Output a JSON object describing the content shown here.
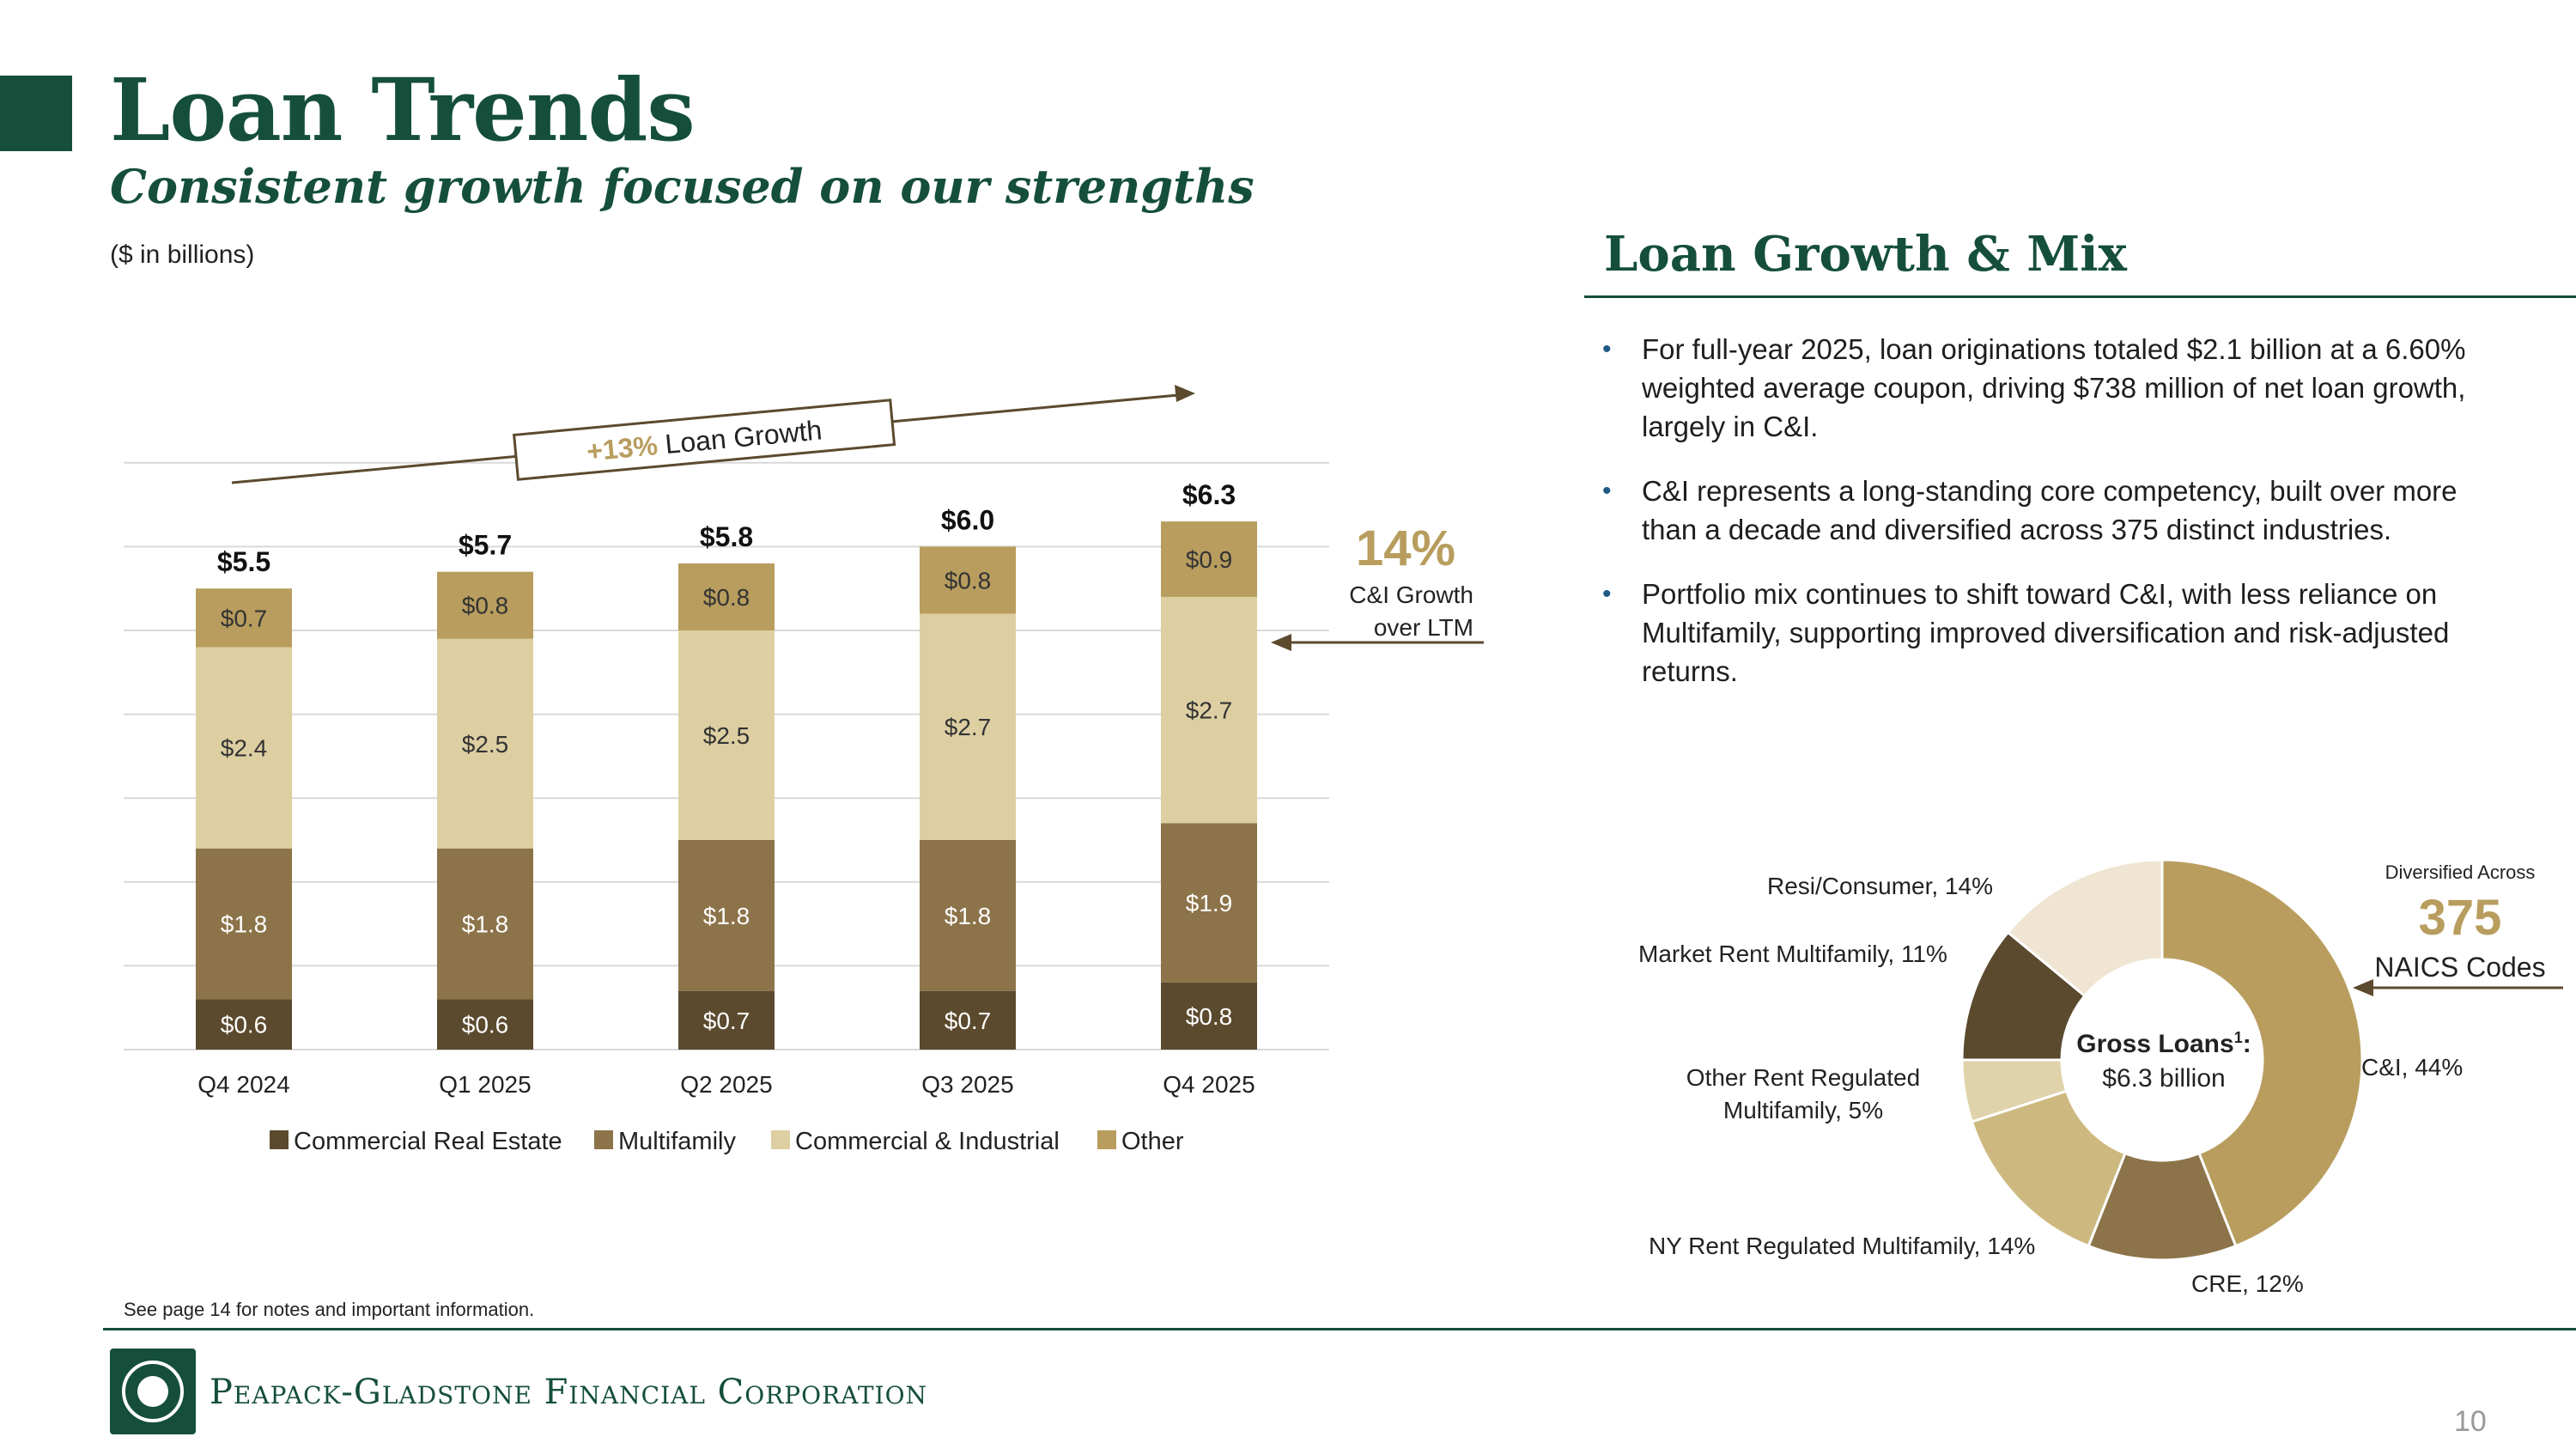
{
  "header": {
    "title": "Loan Trends",
    "subtitle": "Consistent growth focused on our strengths",
    "units_note": "($ in billions)"
  },
  "growth_callout": {
    "pct": "+13%",
    "text": " Loan Growth"
  },
  "ci_callout": {
    "pct": "14%",
    "label_line1": "C&I Growth",
    "label_line2": "over LTM"
  },
  "right_panel": {
    "heading": "Loan Growth & Mix",
    "bullets": [
      "For full-year 2025, loan originations totaled $2.1 billion at a 6.60% weighted average coupon, driving $738 million of net loan growth, largely in C&I.",
      "C&I represents a long-standing core competency, built over more than a decade and diversified across 375 distinct industries.",
      "Portfolio mix continues to shift toward C&I, with less reliance on Multifamily, supporting improved diversification and risk-adjusted returns."
    ]
  },
  "donut": {
    "center_title": "Gross Loans",
    "center_sup": "1",
    "center_colon": ":",
    "center_value": "$6.3 billion",
    "diversified_label": "Diversified Across",
    "diversified_number": "375",
    "diversified_units": "NAICS Codes"
  },
  "footer": {
    "footnote": "See page 14 for notes and important information.",
    "company": "Peapack-Gladstone Financial Corporation",
    "page_number": "10"
  },
  "colors": {
    "brand_green": "#154f3c",
    "cre": "#5b4a2e",
    "multifamily": "#8c7349",
    "ci": "#ddcfa2",
    "other": "#b89d5e",
    "accent_gold": "#b89d5e"
  },
  "chart_data": [
    {
      "type": "bar",
      "stacked": true,
      "categories": [
        "Q4 2024",
        "Q1 2025",
        "Q2 2025",
        "Q3 2025",
        "Q4 2025"
      ],
      "series": [
        {
          "name": "Commercial Real Estate",
          "values": [
            0.6,
            0.6,
            0.7,
            0.7,
            0.8
          ],
          "labels": [
            "$0.6",
            "$0.6",
            "$0.7",
            "$0.7",
            "$0.8"
          ]
        },
        {
          "name": "Multifamily",
          "values": [
            1.8,
            1.8,
            1.8,
            1.8,
            1.9
          ],
          "labels": [
            "$1.8",
            "$1.8",
            "$1.8",
            "$1.8",
            "$1.9"
          ]
        },
        {
          "name": "Commercial & Industrial",
          "values": [
            2.4,
            2.5,
            2.5,
            2.7,
            2.7
          ],
          "labels": [
            "$2.4",
            "$2.5",
            "$2.5",
            "$2.7",
            "$2.7"
          ]
        },
        {
          "name": "Other",
          "values": [
            0.7,
            0.8,
            0.8,
            0.8,
            0.9
          ],
          "labels": [
            "$0.7",
            "$0.8",
            "$0.8",
            "$0.8",
            "$0.9"
          ]
        }
      ],
      "totals": [
        5.5,
        5.7,
        5.8,
        6.0,
        6.3
      ],
      "total_labels": [
        "$5.5",
        "$5.7",
        "$5.8",
        "$6.0",
        "$6.3"
      ],
      "ylim": [
        0,
        7
      ],
      "grid": true,
      "legend_position": "bottom",
      "title": "",
      "xlabel": "",
      "ylabel": ""
    },
    {
      "type": "pie",
      "donut": true,
      "categories": [
        "C&I",
        "CRE",
        "NY Rent Regulated Multifamily",
        "Other Rent Regulated Multifamily",
        "Market Rent Multifamily",
        "Resi/Consumer"
      ],
      "values": [
        44,
        12,
        14,
        5,
        11,
        14
      ],
      "labels": [
        "C&I, 44%",
        "CRE, 12%",
        "NY Rent Regulated Multifamily, 14%",
        "Other Rent Regulated Multifamily, 5%",
        "Market Rent Multifamily, 11%",
        "Resi/Consumer, 14%"
      ],
      "colors": [
        "#b89d5e",
        "#8c7349",
        "#cdb97f",
        "#e0d3ab",
        "#5b4a2e",
        "#efe5d2"
      ]
    }
  ]
}
